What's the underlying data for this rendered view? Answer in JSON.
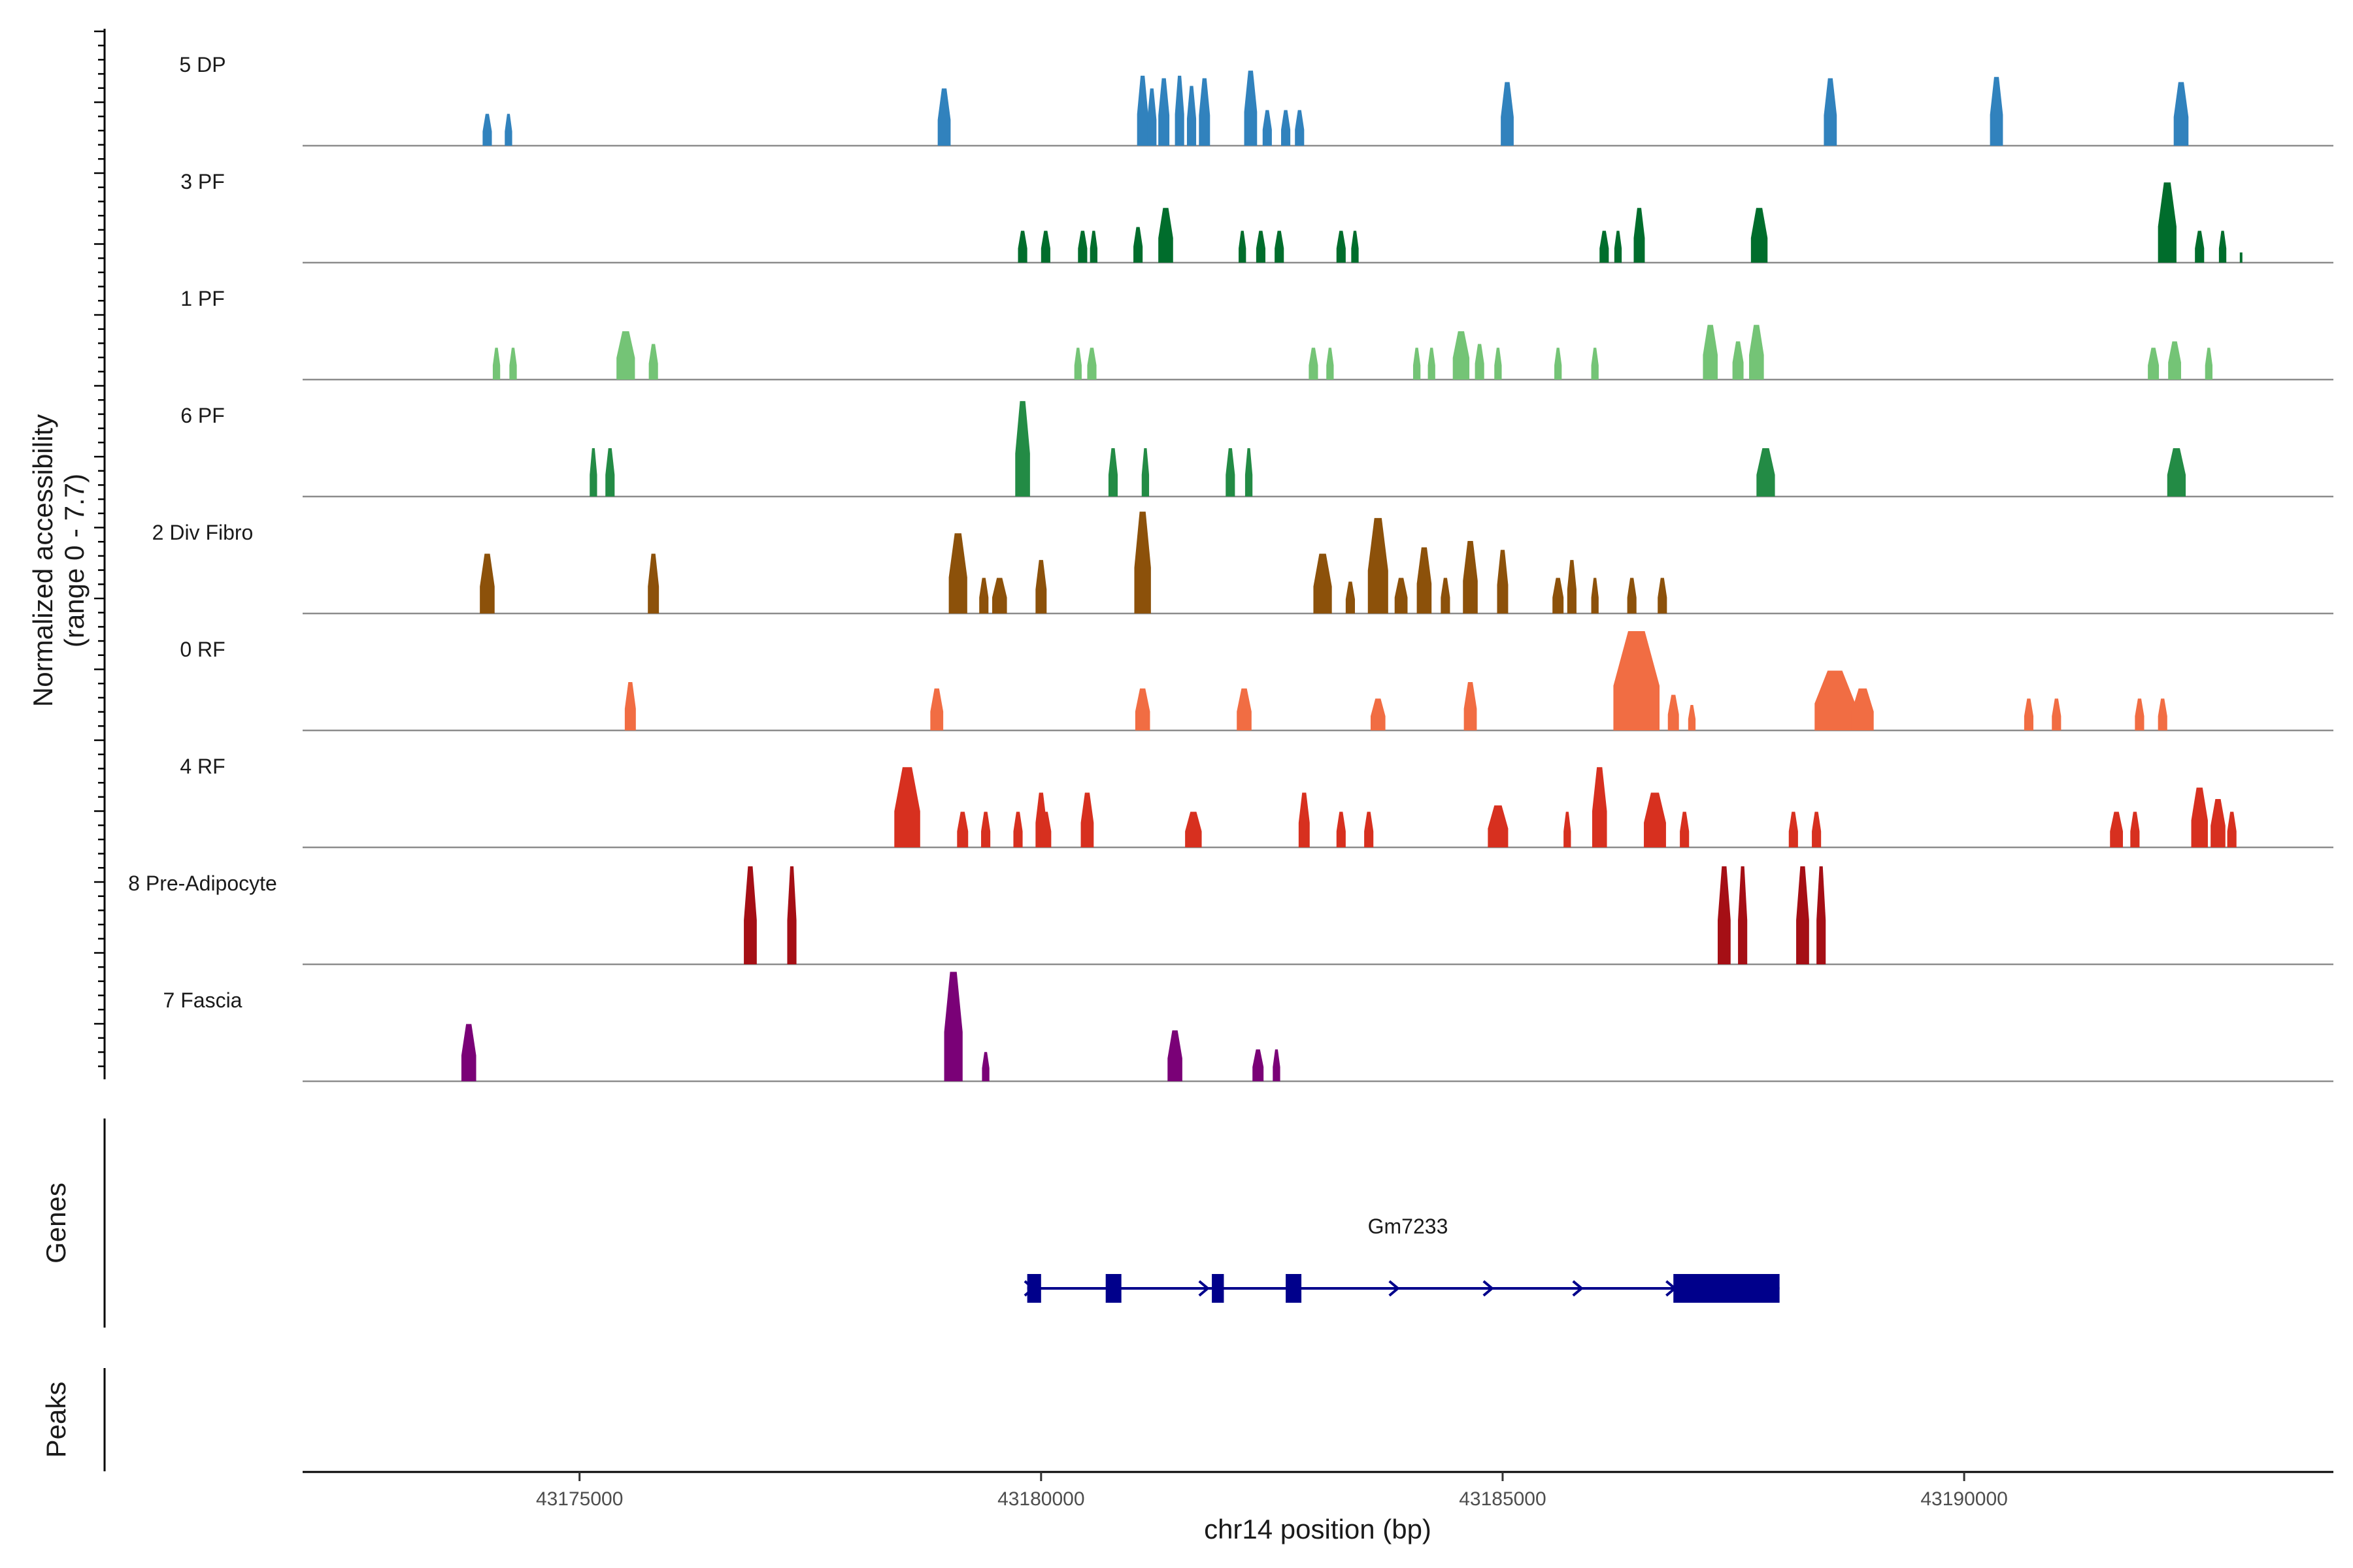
{
  "chart_data": {
    "type": "coverage",
    "title": "",
    "ylabel_line1": "Normalized accessibility",
    "ylabel_line2": "(range 0 - 7.7)",
    "y_range": [
      0,
      7.7
    ],
    "xlabel": "chr14 position (bp)",
    "x_range": [
      43172000,
      43194000
    ],
    "x_ticks": [
      {
        "value": 43175000,
        "label": "43175000"
      },
      {
        "value": 43180000,
        "label": "43180000"
      },
      {
        "value": 43185000,
        "label": "43185000"
      },
      {
        "value": 43190000,
        "label": "43190000"
      }
    ],
    "tracks": [
      {
        "name": "5 DP",
        "color": "#3182bd",
        "peaks": [
          [
            43174000,
            0.1,
            2.5
          ],
          [
            43174230,
            0.08,
            2.5
          ],
          [
            43178950,
            0.14,
            4.5
          ],
          [
            43181100,
            0.12,
            5.5
          ],
          [
            43181200,
            0.1,
            4.5
          ],
          [
            43181330,
            0.12,
            5.3
          ],
          [
            43181500,
            0.1,
            5.5
          ],
          [
            43181630,
            0.1,
            4.7
          ],
          [
            43181770,
            0.12,
            5.3
          ],
          [
            43182270,
            0.14,
            5.9
          ],
          [
            43182450,
            0.1,
            2.8
          ],
          [
            43182650,
            0.1,
            2.8
          ],
          [
            43182800,
            0.1,
            2.8
          ],
          [
            43185050,
            0.14,
            5.0
          ],
          [
            43188550,
            0.14,
            5.3
          ],
          [
            43190350,
            0.14,
            5.4
          ],
          [
            43192350,
            0.16,
            5.0
          ]
        ]
      },
      {
        "name": "3 PF",
        "color": "#006d2c",
        "peaks": [
          [
            43179800,
            0.1,
            2.5
          ],
          [
            43180050,
            0.1,
            2.5
          ],
          [
            43180450,
            0.1,
            2.5
          ],
          [
            43180570,
            0.08,
            2.5
          ],
          [
            43181050,
            0.1,
            2.8
          ],
          [
            43181350,
            0.16,
            4.3
          ],
          [
            43182180,
            0.08,
            2.5
          ],
          [
            43182380,
            0.1,
            2.5
          ],
          [
            43182580,
            0.1,
            2.5
          ],
          [
            43183250,
            0.1,
            2.5
          ],
          [
            43183400,
            0.08,
            2.5
          ],
          [
            43186100,
            0.1,
            2.5
          ],
          [
            43186250,
            0.08,
            2.5
          ],
          [
            43186480,
            0.12,
            4.3
          ],
          [
            43187780,
            0.18,
            4.3
          ],
          [
            43192200,
            0.2,
            6.3
          ],
          [
            43192550,
            0.1,
            2.5
          ],
          [
            43192800,
            0.08,
            2.5
          ],
          [
            43193000,
            0.02,
            0.8
          ]
        ]
      },
      {
        "name": "1 PF",
        "color": "#74c476",
        "peaks": [
          [
            43174100,
            0.08,
            2.5
          ],
          [
            43174280,
            0.08,
            2.5
          ],
          [
            43175500,
            0.2,
            3.8
          ],
          [
            43175800,
            0.1,
            2.8
          ],
          [
            43180400,
            0.08,
            2.5
          ],
          [
            43180550,
            0.1,
            2.5
          ],
          [
            43182950,
            0.1,
            2.5
          ],
          [
            43183130,
            0.08,
            2.5
          ],
          [
            43184070,
            0.08,
            2.5
          ],
          [
            43184230,
            0.08,
            2.5
          ],
          [
            43184550,
            0.18,
            3.8
          ],
          [
            43184750,
            0.1,
            2.8
          ],
          [
            43184950,
            0.08,
            2.5
          ],
          [
            43185600,
            0.08,
            2.5
          ],
          [
            43186000,
            0.08,
            2.5
          ],
          [
            43187250,
            0.16,
            4.3
          ],
          [
            43187550,
            0.12,
            3.0
          ],
          [
            43187750,
            0.16,
            4.3
          ],
          [
            43192050,
            0.12,
            2.5
          ],
          [
            43192280,
            0.14,
            3.0
          ],
          [
            43192650,
            0.08,
            2.5
          ]
        ]
      },
      {
        "name": "6 PF",
        "color": "#238b45",
        "peaks": [
          [
            43175150,
            0.08,
            3.8
          ],
          [
            43175330,
            0.1,
            3.8
          ],
          [
            43179800,
            0.16,
            7.5
          ],
          [
            43180780,
            0.1,
            3.8
          ],
          [
            43181130,
            0.08,
            3.8
          ],
          [
            43182050,
            0.1,
            3.8
          ],
          [
            43182250,
            0.08,
            3.8
          ],
          [
            43187850,
            0.2,
            3.8
          ],
          [
            43192300,
            0.2,
            3.8
          ]
        ]
      },
      {
        "name": "2 Div Fibro",
        "color": "#8c510a",
        "peaks": [
          [
            43174000,
            0.16,
            4.7
          ],
          [
            43175800,
            0.12,
            4.7
          ],
          [
            43179100,
            0.2,
            6.3
          ],
          [
            43179380,
            0.1,
            2.8
          ],
          [
            43179550,
            0.16,
            2.8
          ],
          [
            43180000,
            0.12,
            4.2
          ],
          [
            43181100,
            0.18,
            8.0
          ],
          [
            43183050,
            0.2,
            4.7
          ],
          [
            43183350,
            0.1,
            2.5
          ],
          [
            43183650,
            0.22,
            7.5
          ],
          [
            43183900,
            0.14,
            2.8
          ],
          [
            43184150,
            0.16,
            5.2
          ],
          [
            43184380,
            0.1,
            2.8
          ],
          [
            43184650,
            0.16,
            5.7
          ],
          [
            43185000,
            0.12,
            5.0
          ],
          [
            43185600,
            0.12,
            2.8
          ],
          [
            43185750,
            0.1,
            4.2
          ],
          [
            43186000,
            0.08,
            2.8
          ],
          [
            43186400,
            0.1,
            2.8
          ],
          [
            43186730,
            0.1,
            2.8
          ]
        ]
      },
      {
        "name": "0 RF",
        "color": "#f16d43",
        "peaks": [
          [
            43175550,
            0.12,
            3.8
          ],
          [
            43178870,
            0.14,
            3.3
          ],
          [
            43181100,
            0.16,
            3.3
          ],
          [
            43182200,
            0.16,
            3.3
          ],
          [
            43183650,
            0.16,
            2.5
          ],
          [
            43184650,
            0.14,
            3.8
          ],
          [
            43186450,
            0.5,
            7.8
          ],
          [
            43186850,
            0.12,
            2.8
          ],
          [
            43187050,
            0.08,
            2.0
          ],
          [
            43188600,
            0.44,
            4.7
          ],
          [
            43188900,
            0.24,
            3.3
          ],
          [
            43190700,
            0.1,
            2.5
          ],
          [
            43191000,
            0.1,
            2.5
          ],
          [
            43191900,
            0.1,
            2.5
          ],
          [
            43192150,
            0.1,
            2.5
          ]
        ]
      },
      {
        "name": "4 RF",
        "color": "#d7301f",
        "peaks": [
          [
            43178550,
            0.28,
            6.3
          ],
          [
            43179150,
            0.12,
            2.8
          ],
          [
            43179400,
            0.1,
            2.8
          ],
          [
            43179750,
            0.1,
            2.8
          ],
          [
            43180000,
            0.12,
            4.3
          ],
          [
            43180050,
            0.12,
            2.8
          ],
          [
            43180500,
            0.14,
            4.3
          ],
          [
            43181650,
            0.18,
            2.8
          ],
          [
            43182850,
            0.12,
            4.3
          ],
          [
            43183250,
            0.1,
            2.8
          ],
          [
            43183550,
            0.1,
            2.8
          ],
          [
            43184950,
            0.22,
            3.3
          ],
          [
            43185700,
            0.08,
            2.8
          ],
          [
            43186050,
            0.16,
            6.3
          ],
          [
            43186650,
            0.24,
            4.3
          ],
          [
            43186970,
            0.1,
            2.8
          ],
          [
            43188150,
            0.1,
            2.8
          ],
          [
            43188400,
            0.1,
            2.8
          ],
          [
            43191650,
            0.14,
            2.8
          ],
          [
            43191850,
            0.1,
            2.8
          ],
          [
            43192550,
            0.18,
            4.7
          ],
          [
            43192750,
            0.16,
            3.8
          ],
          [
            43192900,
            0.1,
            2.8
          ]
        ]
      },
      {
        "name": "8 Pre-Adipocyte",
        "color": "#a50f15",
        "peaks": [
          [
            43176850,
            0.14,
            7.7
          ],
          [
            43177300,
            0.1,
            7.7
          ],
          [
            43187400,
            0.14,
            7.7
          ],
          [
            43187600,
            0.1,
            7.7
          ],
          [
            43188250,
            0.14,
            7.7
          ],
          [
            43188450,
            0.1,
            7.7
          ]
        ]
      },
      {
        "name": "7 Fascia",
        "color": "#7a0177",
        "peaks": [
          [
            43173800,
            0.16,
            4.5
          ],
          [
            43179050,
            0.2,
            8.6
          ],
          [
            43179400,
            0.08,
            2.3
          ],
          [
            43181450,
            0.16,
            4.0
          ],
          [
            43182350,
            0.12,
            2.5
          ],
          [
            43182550,
            0.08,
            2.5
          ]
        ]
      }
    ],
    "genes_label": "Genes",
    "peaks_label": "Peaks",
    "gene": {
      "name": "Gm7233",
      "color": "#00008b",
      "start": 43179850,
      "end": 43188000,
      "exons": [
        [
          43179850,
          43180000
        ],
        [
          43180700,
          43180870
        ],
        [
          43181850,
          43181980
        ],
        [
          43182650,
          43182820
        ],
        [
          43186850,
          43188000
        ]
      ],
      "arrows": [
        43179880,
        43181770,
        43183830,
        43184850,
        43185820,
        43186830
      ]
    }
  }
}
